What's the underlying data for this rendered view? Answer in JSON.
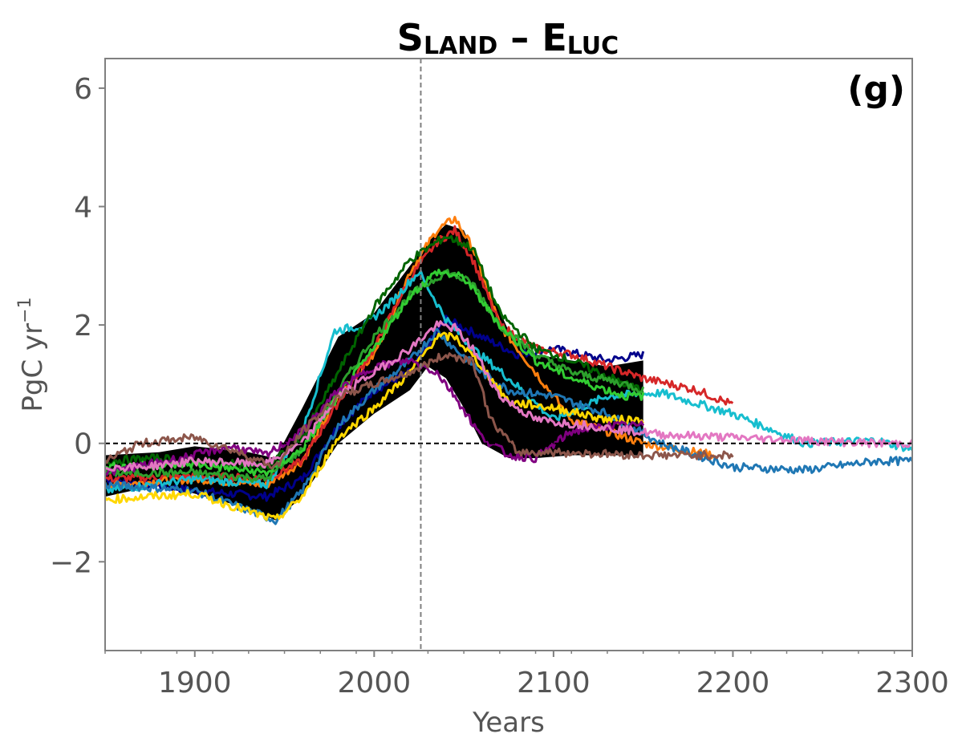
{
  "chart_data": {
    "type": "line",
    "title_main_1": "S",
    "title_sub_1": "LAND",
    "title_dash": " – ",
    "title_main_2": "E",
    "title_sub_2": "LUC",
    "panel_label": "(g)",
    "xlabel": "Years",
    "ylabel_main": "PgC yr",
    "ylabel_sup": "−1",
    "xlim": [
      1850,
      2300
    ],
    "ylim": [
      -3.5,
      6.5
    ],
    "xticks": [
      1900,
      2000,
      2100,
      2200,
      2300
    ],
    "xtick_labels": [
      "1900",
      "2000",
      "2100",
      "2200",
      "2300"
    ],
    "yticks": [
      -2,
      0,
      2,
      4,
      6
    ],
    "ytick_labels": [
      "−2",
      "0",
      "2",
      "4",
      "6"
    ],
    "reference_lines": [
      {
        "axis": "y",
        "value": 0,
        "style": "dashed",
        "color": "#000000"
      },
      {
        "axis": "x",
        "value": 2026,
        "style": "dashed",
        "color": "#808080"
      }
    ],
    "envelope": {
      "color": "#000000",
      "x": [
        1850,
        1880,
        1900,
        1930,
        1945,
        1960,
        1980,
        2000,
        2020,
        2030,
        2040,
        2050,
        2060,
        2075,
        2090,
        2110,
        2130,
        2150
      ],
      "upper": [
        -0.2,
        -0.15,
        -0.05,
        -0.15,
        -0.25,
        0.6,
        1.8,
        2.2,
        3.0,
        3.4,
        3.7,
        3.6,
        2.9,
        1.9,
        1.5,
        1.4,
        1.3,
        1.4
      ],
      "lower": [
        -0.9,
        -0.7,
        -0.85,
        -1.1,
        -1.3,
        -0.9,
        0.0,
        0.5,
        0.9,
        1.3,
        1.1,
        0.6,
        0.0,
        -0.25,
        -0.25,
        -0.2,
        -0.2,
        -0.2
      ]
    },
    "series": [
      {
        "color": "#00008b",
        "x": [
          1850,
          1900,
          1940,
          1960,
          1980,
          2000,
          2020,
          2040,
          2060,
          2080,
          2100,
          2130,
          2150
        ],
        "y": [
          -0.6,
          -0.8,
          -0.9,
          -0.6,
          0.3,
          0.9,
          1.2,
          2.1,
          1.8,
          1.5,
          1.6,
          1.4,
          1.5
        ]
      },
      {
        "color": "#ff7f0e",
        "x": [
          1850,
          1900,
          1940,
          1960,
          1980,
          2000,
          2020,
          2035,
          2045,
          2055,
          2070,
          2090,
          2110,
          2150,
          2190
        ],
        "y": [
          -0.7,
          -0.6,
          -0.7,
          -0.3,
          0.8,
          1.5,
          2.9,
          3.6,
          3.8,
          3.3,
          2.0,
          1.2,
          0.4,
          0.0,
          -0.2
        ]
      },
      {
        "color": "#d62728",
        "x": [
          1850,
          1900,
          1940,
          1960,
          1980,
          2000,
          2020,
          2035,
          2045,
          2055,
          2070,
          2090,
          2110,
          2150,
          2180,
          2200
        ],
        "y": [
          -0.6,
          -0.55,
          -0.6,
          -0.3,
          0.7,
          1.6,
          2.8,
          3.4,
          3.6,
          3.1,
          2.0,
          1.6,
          1.5,
          1.1,
          0.9,
          0.65
        ]
      },
      {
        "color": "#17becf",
        "x": [
          1850,
          1900,
          1940,
          1960,
          1978,
          1995,
          2010,
          2025,
          2040,
          2055,
          2075,
          2100,
          2130,
          2160,
          2200,
          2240,
          2280,
          2300
        ],
        "y": [
          -0.8,
          -0.6,
          -0.7,
          0.2,
          1.9,
          2.0,
          2.4,
          2.9,
          2.1,
          1.6,
          1.1,
          0.4,
          0.8,
          0.85,
          0.5,
          0.0,
          0.05,
          -0.1
        ]
      },
      {
        "color": "#1f77b4",
        "x": [
          1850,
          1900,
          1945,
          1960,
          1980,
          2000,
          2020,
          2035,
          2045,
          2060,
          2075,
          2100,
          2130,
          2160,
          2200,
          2240,
          2280,
          2300
        ],
        "y": [
          -0.7,
          -0.8,
          -1.3,
          -0.8,
          0.3,
          0.9,
          1.4,
          1.9,
          1.6,
          1.2,
          0.9,
          0.8,
          0.5,
          0.0,
          -0.4,
          -0.45,
          -0.3,
          -0.3
        ]
      },
      {
        "color": "#006400",
        "x": [
          1850,
          1880,
          1900,
          1940,
          1960,
          1980,
          2000,
          2020,
          2040,
          2055,
          2070,
          2090,
          2110,
          2140,
          2150
        ],
        "y": [
          -0.3,
          -0.25,
          -0.3,
          -0.4,
          0.1,
          1.2,
          2.3,
          3.1,
          3.5,
          3.3,
          2.2,
          1.6,
          1.4,
          1.0,
          0.9
        ]
      },
      {
        "color": "#2ca02c",
        "x": [
          1850,
          1900,
          1940,
          1960,
          1980,
          2000,
          2020,
          2040,
          2055,
          2070,
          2090,
          2110,
          2140,
          2150
        ],
        "y": [
          -0.5,
          -0.5,
          -0.6,
          -0.1,
          0.9,
          1.8,
          2.5,
          2.9,
          2.7,
          2.0,
          1.5,
          1.2,
          1.0,
          0.9
        ]
      },
      {
        "color": "#32cd32",
        "x": [
          1850,
          1900,
          1940,
          1960,
          1980,
          2000,
          2020,
          2035,
          2050,
          2070,
          2090,
          2110,
          2140,
          2150
        ],
        "y": [
          -0.4,
          -0.35,
          -0.5,
          -0.1,
          0.8,
          1.6,
          2.5,
          2.9,
          2.8,
          2.0,
          1.4,
          1.1,
          0.8,
          0.8
        ]
      },
      {
        "color": "#ffd700",
        "x": [
          1850,
          1900,
          1945,
          1960,
          1980,
          2000,
          2020,
          2035,
          2045,
          2060,
          2075,
          2100,
          2130,
          2150
        ],
        "y": [
          -0.95,
          -0.85,
          -1.3,
          -0.9,
          0.1,
          0.6,
          1.2,
          1.8,
          1.8,
          1.3,
          0.7,
          0.6,
          0.4,
          0.4
        ]
      },
      {
        "color": "#800080",
        "x": [
          1850,
          1900,
          1920,
          1940,
          1960,
          1980,
          2000,
          2020,
          2035,
          2045,
          2060,
          2075,
          2090,
          2110,
          2130,
          2150
        ],
        "y": [
          -0.5,
          -0.2,
          -0.05,
          -0.2,
          0.2,
          0.9,
          1.3,
          1.4,
          1.2,
          0.8,
          0.1,
          -0.2,
          -0.25,
          0.2,
          0.3,
          0.3
        ]
      },
      {
        "color": "#e377c2",
        "x": [
          1850,
          1870,
          1900,
          1940,
          1960,
          1980,
          2000,
          2020,
          2035,
          2045,
          2055,
          2070,
          2090,
          2120,
          2160,
          2200,
          2240,
          2280,
          2300
        ],
        "y": [
          -0.4,
          -0.4,
          -0.3,
          -0.35,
          0.0,
          0.8,
          1.2,
          1.6,
          2.0,
          1.95,
          1.6,
          0.8,
          0.4,
          0.3,
          0.15,
          0.1,
          0.05,
          0.0,
          0.0
        ]
      },
      {
        "color": "#8c564b",
        "x": [
          1850,
          1870,
          1900,
          1920,
          1945,
          1960,
          1980,
          2000,
          2020,
          2040,
          2055,
          2065,
          2080,
          2100,
          2150,
          2200
        ],
        "y": [
          -0.3,
          0.0,
          0.1,
          -0.1,
          -0.4,
          0.2,
          0.8,
          1.0,
          1.2,
          1.5,
          1.4,
          0.4,
          -0.15,
          -0.15,
          -0.2,
          -0.2
        ]
      }
    ]
  }
}
